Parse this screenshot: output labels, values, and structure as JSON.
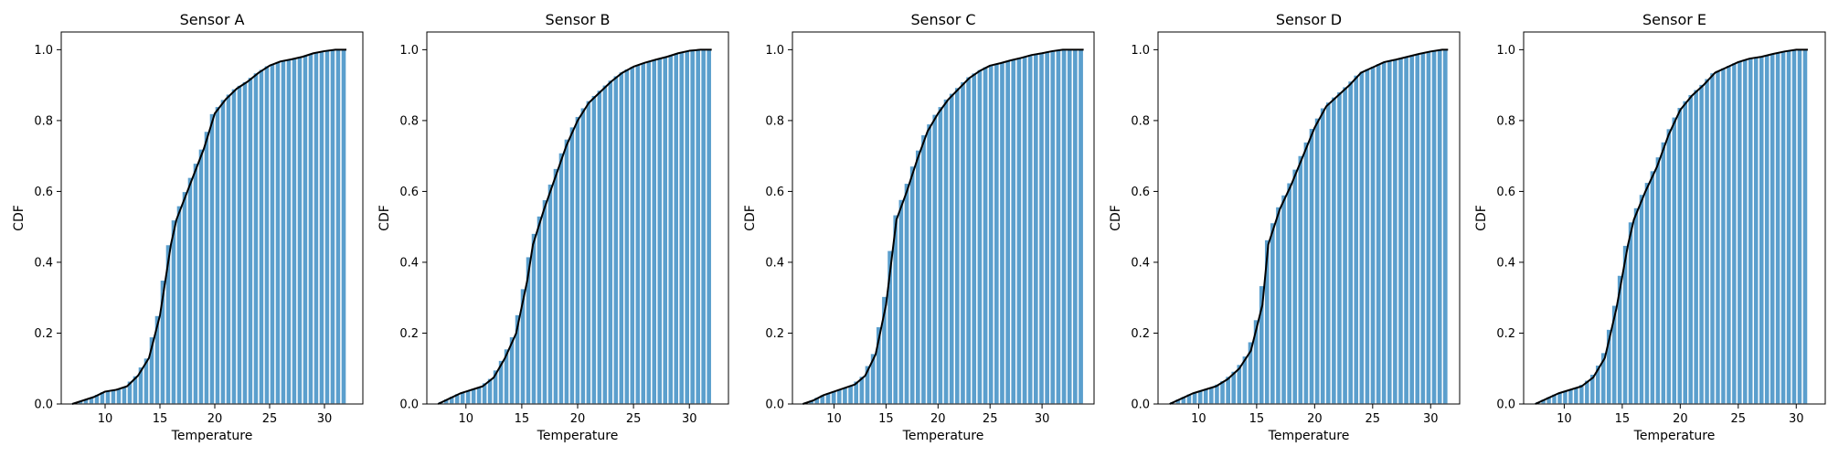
{
  "chart_data": [
    {
      "type": "bar",
      "title": "Sensor A",
      "xlabel": "Temperature",
      "ylabel": "CDF",
      "xlim": [
        6,
        33.5
      ],
      "ylim": [
        0,
        1.05
      ],
      "xticks": [
        10,
        15,
        20,
        25,
        30
      ],
      "yticks": [
        0.0,
        0.2,
        0.4,
        0.6,
        0.8,
        1.0
      ],
      "ytick_labels": [
        "0.0",
        "0.2",
        "0.4",
        "0.6",
        "0.8",
        "1.0"
      ],
      "bar_color": "#5b9fcd",
      "line_color": "#000000",
      "x": [
        7.0,
        8.0,
        9.0,
        10.0,
        11.0,
        12.0,
        13.0,
        14.0,
        15.0,
        16.0,
        16.5,
        17.0,
        18.0,
        19.0,
        20.0,
        20.5,
        21.0,
        22.0,
        23.0,
        24.0,
        25.0,
        26.0,
        27.0,
        28.0,
        29.0,
        30.0,
        31.0,
        32.0
      ],
      "values": [
        0.0,
        0.01,
        0.02,
        0.035,
        0.04,
        0.05,
        0.08,
        0.13,
        0.25,
        0.45,
        0.52,
        0.56,
        0.64,
        0.72,
        0.82,
        0.84,
        0.86,
        0.89,
        0.91,
        0.935,
        0.955,
        0.967,
        0.973,
        0.98,
        0.99,
        0.996,
        1.0,
        1.0
      ]
    },
    {
      "type": "bar",
      "title": "Sensor B",
      "xlabel": "Temperature",
      "ylabel": "CDF",
      "xlim": [
        6.5,
        33.5
      ],
      "ylim": [
        0,
        1.05
      ],
      "xticks": [
        10,
        15,
        20,
        25,
        30
      ],
      "yticks": [
        0.0,
        0.2,
        0.4,
        0.6,
        0.8,
        1.0
      ],
      "ytick_labels": [
        "0.0",
        "0.2",
        "0.4",
        "0.6",
        "0.8",
        "1.0"
      ],
      "bar_color": "#5b9fcd",
      "line_color": "#000000",
      "x": [
        7.5,
        8.5,
        9.5,
        10.5,
        11.5,
        12.5,
        13.5,
        14.5,
        15.5,
        16.0,
        17.0,
        18.0,
        19.0,
        20.0,
        21.0,
        22.0,
        23.0,
        24.0,
        25.0,
        26.0,
        27.0,
        28.0,
        29.0,
        30.0,
        31.0,
        32.0
      ],
      "values": [
        0.0,
        0.015,
        0.03,
        0.04,
        0.05,
        0.075,
        0.13,
        0.2,
        0.35,
        0.45,
        0.55,
        0.64,
        0.73,
        0.8,
        0.85,
        0.88,
        0.91,
        0.935,
        0.952,
        0.963,
        0.972,
        0.98,
        0.99,
        0.997,
        1.0,
        1.0
      ]
    },
    {
      "type": "bar",
      "title": "Sensor C",
      "xlabel": "Temperature",
      "ylabel": "CDF",
      "xlim": [
        6,
        35
      ],
      "ylim": [
        0,
        1.05
      ],
      "xticks": [
        10,
        15,
        20,
        25,
        30
      ],
      "yticks": [
        0.0,
        0.2,
        0.4,
        0.6,
        0.8,
        1.0
      ],
      "ytick_labels": [
        "0.0",
        "0.2",
        "0.4",
        "0.6",
        "0.8",
        "1.0"
      ],
      "bar_color": "#5b9fcd",
      "line_color": "#000000",
      "x": [
        7.0,
        8.0,
        9.0,
        10.0,
        11.0,
        12.0,
        13.0,
        14.0,
        15.0,
        16.0,
        17.0,
        18.0,
        19.0,
        20.0,
        21.0,
        22.0,
        23.0,
        24.0,
        25.0,
        26.0,
        27.0,
        28.0,
        29.0,
        30.0,
        31.0,
        32.0,
        33.0,
        34.0
      ],
      "values": [
        0.0,
        0.01,
        0.025,
        0.035,
        0.045,
        0.055,
        0.08,
        0.14,
        0.28,
        0.52,
        0.6,
        0.69,
        0.77,
        0.82,
        0.86,
        0.89,
        0.92,
        0.94,
        0.955,
        0.962,
        0.97,
        0.977,
        0.985,
        0.99,
        0.996,
        1.0,
        1.0,
        1.0
      ]
    },
    {
      "type": "bar",
      "title": "Sensor D",
      "xlabel": "Temperature",
      "ylabel": "CDF",
      "xlim": [
        6.5,
        32.5
      ],
      "ylim": [
        0,
        1.05
      ],
      "xticks": [
        10,
        15,
        20,
        25,
        30
      ],
      "yticks": [
        0.0,
        0.2,
        0.4,
        0.6,
        0.8,
        1.0
      ],
      "ytick_labels": [
        "0.0",
        "0.2",
        "0.4",
        "0.6",
        "0.8",
        "1.0"
      ],
      "bar_color": "#5b9fcd",
      "line_color": "#000000",
      "x": [
        7.5,
        8.5,
        9.5,
        10.5,
        11.5,
        12.5,
        13.5,
        14.5,
        15.5,
        16.0,
        17.0,
        18.0,
        19.0,
        20.0,
        21.0,
        22.0,
        23.0,
        24.0,
        25.0,
        26.0,
        27.0,
        28.0,
        29.0,
        30.0,
        31.0,
        31.5
      ],
      "values": [
        0.0,
        0.015,
        0.03,
        0.04,
        0.05,
        0.07,
        0.1,
        0.15,
        0.28,
        0.45,
        0.55,
        0.62,
        0.7,
        0.78,
        0.84,
        0.87,
        0.9,
        0.935,
        0.95,
        0.965,
        0.972,
        0.98,
        0.988,
        0.995,
        1.0,
        1.0
      ]
    },
    {
      "type": "bar",
      "title": "Sensor E",
      "xlabel": "Temperature",
      "ylabel": "CDF",
      "xlim": [
        6.5,
        32.5
      ],
      "ylim": [
        0,
        1.05
      ],
      "xticks": [
        10,
        15,
        20,
        25,
        30
      ],
      "yticks": [
        0.0,
        0.2,
        0.4,
        0.6,
        0.8,
        1.0
      ],
      "ytick_labels": [
        "0.0",
        "0.2",
        "0.4",
        "0.6",
        "0.8",
        "1.0"
      ],
      "bar_color": "#5b9fcd",
      "line_color": "#000000",
      "x": [
        7.5,
        8.5,
        9.5,
        10.5,
        11.5,
        12.5,
        13.5,
        14.5,
        15.5,
        16.0,
        17.0,
        18.0,
        19.0,
        20.0,
        21.0,
        22.0,
        23.0,
        24.0,
        25.0,
        26.0,
        27.0,
        28.0,
        29.0,
        30.0,
        31.0
      ],
      "values": [
        0.0,
        0.015,
        0.03,
        0.04,
        0.05,
        0.075,
        0.13,
        0.27,
        0.45,
        0.52,
        0.6,
        0.67,
        0.76,
        0.83,
        0.87,
        0.9,
        0.935,
        0.95,
        0.965,
        0.975,
        0.98,
        0.988,
        0.995,
        1.0,
        1.0
      ]
    }
  ]
}
